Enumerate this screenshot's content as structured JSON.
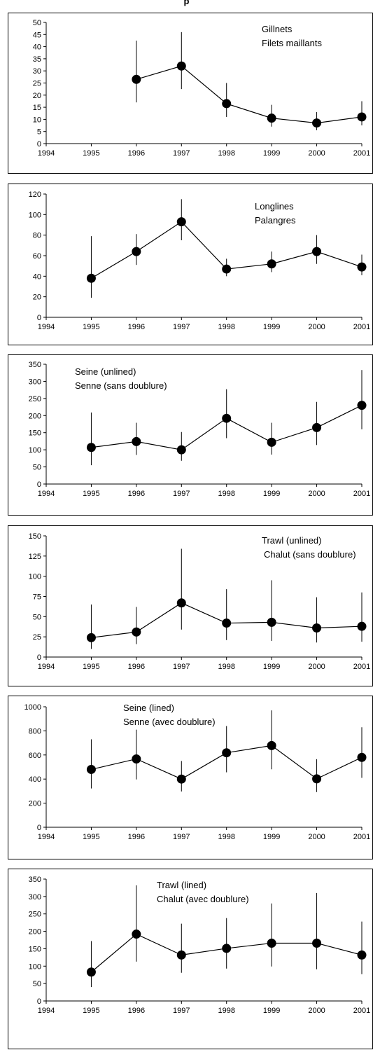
{
  "page": {
    "top_title": "p"
  },
  "chart_data": [
    {
      "type": "line",
      "legend": [
        "Gillnets",
        "Filets maillants"
      ],
      "x": [
        1996,
        1997,
        1998,
        1999,
        2000,
        2001
      ],
      "y": [
        26.5,
        32,
        16.5,
        10.5,
        8.5,
        11
      ],
      "y_low": [
        17,
        22.5,
        11,
        7,
        5.5,
        7.5
      ],
      "y_high": [
        42.5,
        46,
        25,
        16,
        13,
        17.5
      ],
      "xlim": [
        1994,
        2001
      ],
      "xticks": [
        "1994",
        "1995",
        "1996",
        "1997",
        "1998",
        "1999",
        "2000",
        "2001"
      ],
      "ylim": [
        0,
        50
      ],
      "yticks": [
        "0",
        "5",
        "10",
        "15",
        "20",
        "25",
        "30",
        "35",
        "40",
        "45",
        "50"
      ]
    },
    {
      "type": "line",
      "legend": [
        "Longlines",
        "Palangres"
      ],
      "x": [
        1995,
        1996,
        1997,
        1998,
        1999,
        2000,
        2001
      ],
      "y": [
        38,
        64,
        93,
        47,
        52,
        64,
        49
      ],
      "y_low": [
        19,
        51,
        75,
        40,
        44,
        52,
        41
      ],
      "y_high": [
        79,
        81,
        115,
        57,
        64,
        80,
        61
      ],
      "xlim": [
        1994,
        2001
      ],
      "xticks": [
        "1994",
        "1995",
        "1996",
        "1997",
        "1998",
        "1999",
        "2000",
        "2001"
      ],
      "ylim": [
        0,
        120
      ],
      "yticks": [
        "0",
        "20",
        "40",
        "60",
        "80",
        "100",
        "120"
      ]
    },
    {
      "type": "line",
      "legend": [
        "Seine (unlined)",
        "Senne (sans doublure)"
      ],
      "x": [
        1995,
        1996,
        1997,
        1998,
        1999,
        2000,
        2001
      ],
      "y": [
        107,
        124,
        100,
        192,
        122,
        165,
        230
      ],
      "y_low": [
        55,
        85,
        68,
        134,
        86,
        114,
        160
      ],
      "y_high": [
        209,
        179,
        152,
        277,
        179,
        240,
        333
      ],
      "xlim": [
        1994,
        2001
      ],
      "xticks": [
        "1994",
        "1995",
        "1996",
        "1997",
        "1998",
        "1999",
        "2000",
        "2001"
      ],
      "ylim": [
        0,
        350
      ],
      "yticks": [
        "0",
        "50",
        "100",
        "150",
        "200",
        "250",
        "300",
        "350"
      ]
    },
    {
      "type": "line",
      "legend": [
        "Trawl (unlined)",
        "Chalut (sans doublure)"
      ],
      "x": [
        1995,
        1996,
        1997,
        1998,
        1999,
        2000,
        2001
      ],
      "y": [
        24,
        31,
        67,
        42,
        43,
        36,
        38
      ],
      "y_low": [
        10,
        16,
        34,
        21,
        20,
        18,
        19
      ],
      "y_high": [
        65,
        62,
        134,
        84,
        95,
        74,
        80
      ],
      "xlim": [
        1994,
        2001
      ],
      "xticks": [
        "1994",
        "1995",
        "1996",
        "1997",
        "1998",
        "1999",
        "2000",
        "2001"
      ],
      "ylim": [
        0,
        150
      ],
      "yticks": [
        "0",
        "25",
        "50",
        "75",
        "100",
        "125",
        "150"
      ]
    },
    {
      "type": "line",
      "legend": [
        "Seine (lined)",
        "Senne (avec doublure)"
      ],
      "x": [
        1995,
        1996,
        1997,
        1998,
        1999,
        2000,
        2001
      ],
      "y": [
        480,
        567,
        400,
        618,
        678,
        402,
        580
      ],
      "y_low": [
        322,
        397,
        297,
        456,
        481,
        292,
        410
      ],
      "y_high": [
        730,
        810,
        550,
        840,
        970,
        565,
        830
      ],
      "xlim": [
        1994,
        2001
      ],
      "xticks": [
        "1994",
        "1995",
        "1996",
        "1997",
        "1998",
        "1999",
        "2000",
        "2001"
      ],
      "ylim": [
        0,
        1000
      ],
      "yticks": [
        "0",
        "200",
        "400",
        "600",
        "800",
        "1000"
      ]
    },
    {
      "type": "line",
      "legend": [
        "Trawl (lined)",
        "Chalut (avec doublure)"
      ],
      "x": [
        1995,
        1996,
        1997,
        1998,
        1999,
        2000,
        2001
      ],
      "y": [
        83,
        192,
        132,
        151,
        166,
        166,
        132
      ],
      "y_low": [
        40,
        113,
        81,
        93,
        99,
        91,
        77
      ],
      "y_high": [
        172,
        332,
        222,
        238,
        280,
        310,
        228
      ],
      "xlim": [
        1994,
        2001
      ],
      "xticks": [
        "1994",
        "1995",
        "1996",
        "1997",
        "1998",
        "1999",
        "2000",
        "2001"
      ],
      "ylim": [
        0,
        350
      ],
      "yticks": [
        "0",
        "50",
        "100",
        "150",
        "200",
        "250",
        "300",
        "350"
      ]
    }
  ]
}
